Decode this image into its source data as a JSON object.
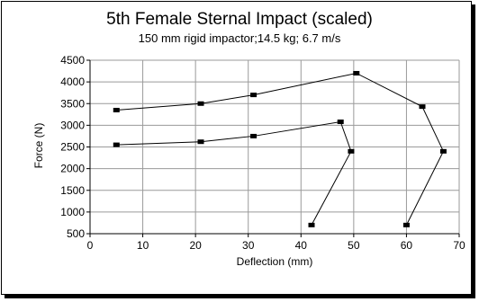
{
  "chart_data": {
    "type": "scatter",
    "title": "5th Female Sternal Impact (scaled)",
    "subtitle": "150 mm rigid impactor;14.5 kg; 6.7 m/s",
    "xlabel": "Deflection (mm)",
    "ylabel": "Force (N)",
    "xlim": [
      0,
      70
    ],
    "ylim": [
      500,
      4500
    ],
    "xticks": [
      0,
      10,
      20,
      30,
      40,
      50,
      60,
      70
    ],
    "yticks": [
      500,
      1000,
      1500,
      2000,
      2500,
      3000,
      3500,
      4000,
      4500
    ],
    "grid": true,
    "series": [
      {
        "style": "line-with-markers",
        "color": "#000000",
        "points": [
          [
            5,
            3350
          ],
          [
            21,
            3500
          ],
          [
            31,
            3700
          ],
          [
            50.5,
            4200
          ],
          [
            63,
            3430
          ],
          [
            67,
            2400
          ],
          [
            60,
            700
          ]
        ]
      },
      {
        "style": "line-with-markers",
        "color": "#000000",
        "points": [
          [
            5,
            2550
          ],
          [
            21,
            2620
          ],
          [
            31,
            2750
          ],
          [
            47.5,
            3080
          ],
          [
            49.5,
            2400
          ],
          [
            42,
            700
          ]
        ]
      }
    ]
  }
}
